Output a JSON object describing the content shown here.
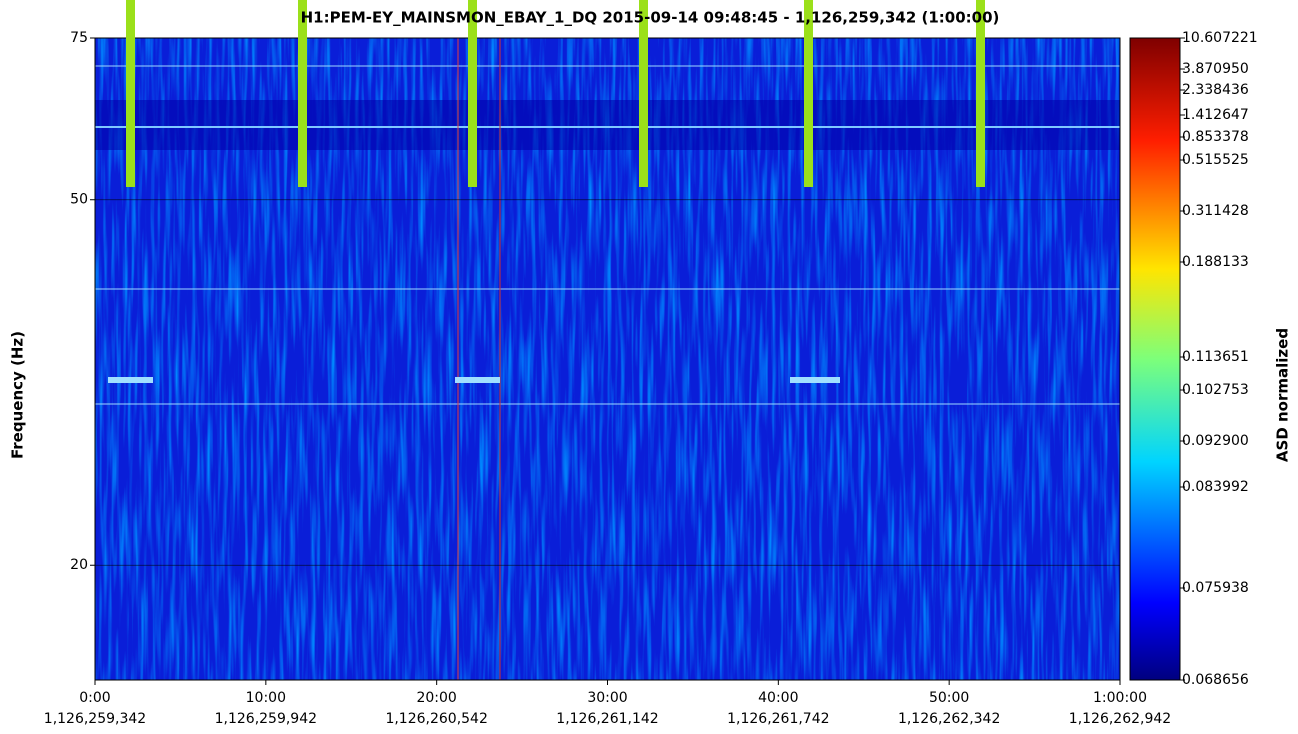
{
  "chart_data": {
    "type": "spectrogram",
    "title": "H1:PEM-EY_MAINSMON_EBAY_1_DQ 2015-09-14 09:48:45 - 1,126,259,342 (1:00:00)",
    "y_label": "Frequency (Hz)",
    "colorbar_label": "ASD normalized",
    "log_y": true,
    "ylim": [
      15,
      75
    ],
    "yticks": [
      20,
      50,
      75
    ],
    "xlim": [
      0,
      3600
    ],
    "xticks": [
      {
        "value": 0,
        "label": "0:00"
      },
      {
        "value": 600,
        "label": "10:00"
      },
      {
        "value": 1200,
        "label": "20:00"
      },
      {
        "value": 1800,
        "label": "30:00"
      },
      {
        "value": 2400,
        "label": "40:00"
      },
      {
        "value": 3000,
        "label": "50:00"
      },
      {
        "value": 3600,
        "label": "1:00:00"
      }
    ],
    "xtick_sublabels": [
      "1,126,259,342",
      "1,126,259,942",
      "1,126,260,542",
      "1,126,261,142",
      "1,126,261,742",
      "1,126,262,342",
      "1,126,262,942"
    ],
    "colorbar_ticks": [
      10.607221,
      {
        "value": 3.87095,
        "label": "3.870950"
      },
      2.338436,
      1.412647,
      0.853378,
      0.515525,
      0.311428,
      0.188133,
      0.113651,
      0.102753,
      {
        "value": 0.0929,
        "label": "0.092900"
      },
      0.083992,
      0.075938,
      0.068656
    ]
  }
}
